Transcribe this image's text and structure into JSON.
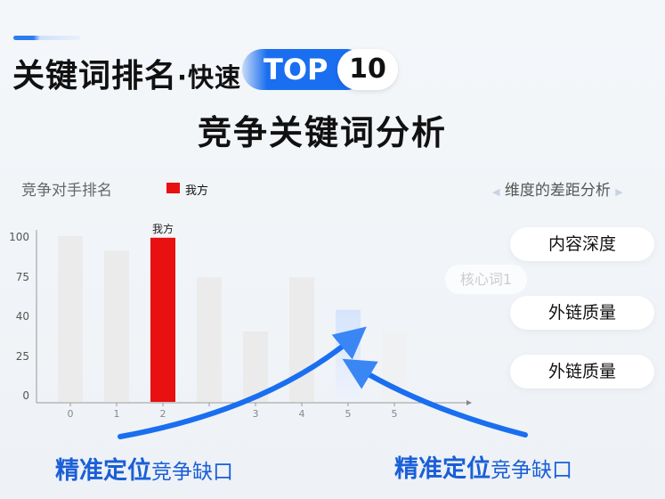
{
  "header": {
    "title_main": "关键词排名",
    "title_sep": "·快速",
    "top_label": "TOP",
    "top_number": "10",
    "subtitle": "竞争关键词分析"
  },
  "left_panel": {
    "label": "竞争对手排名",
    "legend_label": "我方",
    "legend_color": "#e81010"
  },
  "right_panel": {
    "label": "维度的差距分析",
    "left_arrow": "◀",
    "right_arrow": "▶",
    "items": [
      "内容深度",
      "外链质量",
      "外链质量"
    ],
    "faint_tag": "核心词1"
  },
  "bottom": {
    "left_bold": "精准定位",
    "left_normal": "竞争缺口",
    "right_bold": "精准定位",
    "right_normal": "竞争缺口"
  },
  "colors": {
    "accent": "#1a6ef0",
    "highlight": "#e81010",
    "bar": "#ebebeb"
  },
  "chart_data": {
    "type": "bar",
    "categories": [
      "0",
      "1",
      "2",
      "",
      "3",
      "4",
      "5",
      "5"
    ],
    "values": [
      100,
      91,
      99,
      74,
      34,
      74,
      45,
      34
    ],
    "highlight_index": 2,
    "highlight_label": "我方",
    "gap_index": 6,
    "y_ticks": [
      0,
      25,
      40,
      75,
      100
    ],
    "ylim": [
      0,
      100
    ],
    "grid": false
  }
}
